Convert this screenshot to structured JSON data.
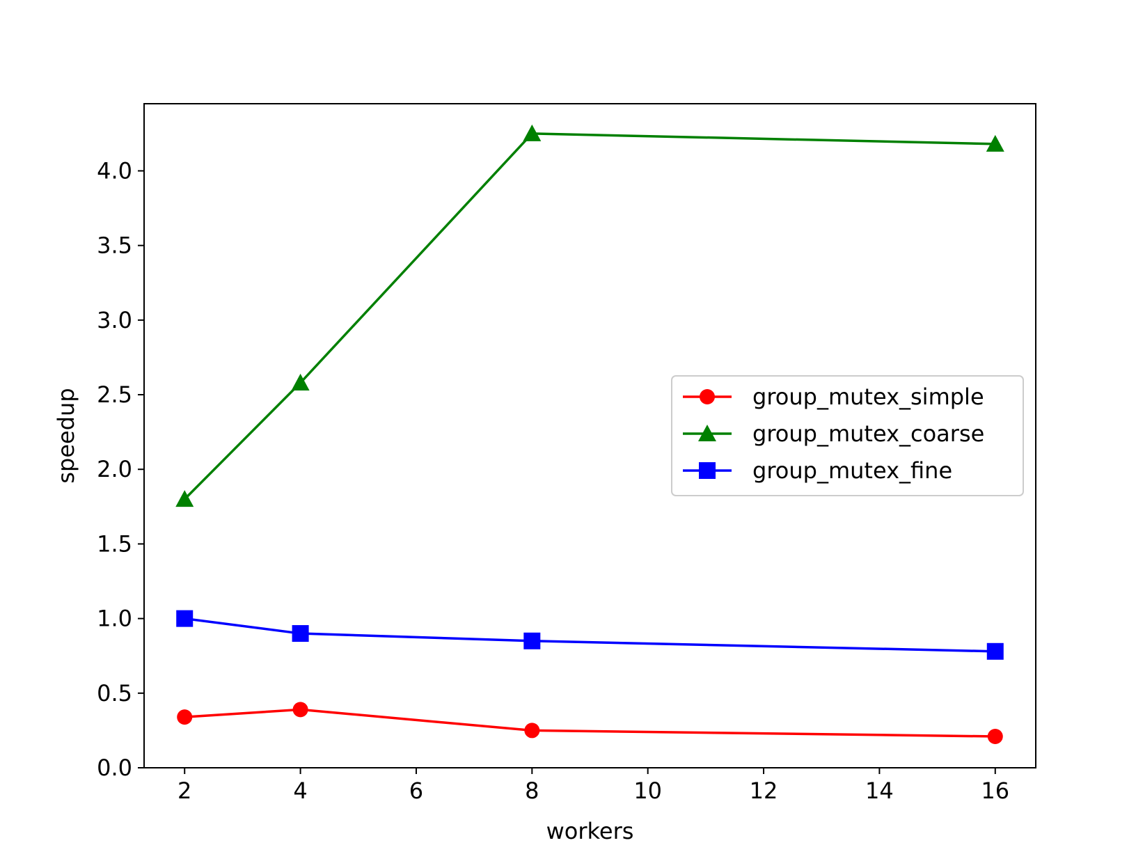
{
  "chart_data": {
    "type": "line",
    "title": "",
    "xlabel": "workers",
    "ylabel": "speedup",
    "xlim": [
      1.3,
      16.7
    ],
    "ylim": [
      0,
      4.45
    ],
    "x_ticks": [
      2,
      4,
      6,
      8,
      10,
      12,
      14,
      16
    ],
    "y_ticks": [
      0.0,
      0.5,
      1.0,
      1.5,
      2.0,
      2.5,
      3.0,
      3.5,
      4.0
    ],
    "x_tick_labels": [
      "2",
      "4",
      "6",
      "8",
      "10",
      "12",
      "14",
      "16"
    ],
    "y_tick_labels": [
      "0.0",
      "0.5",
      "1.0",
      "1.5",
      "2.0",
      "2.5",
      "3.0",
      "3.5",
      "4.0"
    ],
    "grid": false,
    "legend_position": "center-right",
    "x": [
      2,
      4,
      8,
      16
    ],
    "series": [
      {
        "name": "group_mutex_simple",
        "color": "#ff0000",
        "marker": "circle",
        "values": [
          0.34,
          0.39,
          0.25,
          0.21
        ]
      },
      {
        "name": "group_mutex_coarse",
        "color": "#008000",
        "marker": "triangle",
        "values": [
          1.8,
          2.58,
          4.25,
          4.18
        ]
      },
      {
        "name": "group_mutex_fine",
        "color": "#0000ff",
        "marker": "square",
        "values": [
          1.0,
          0.9,
          0.85,
          0.78
        ]
      }
    ]
  }
}
